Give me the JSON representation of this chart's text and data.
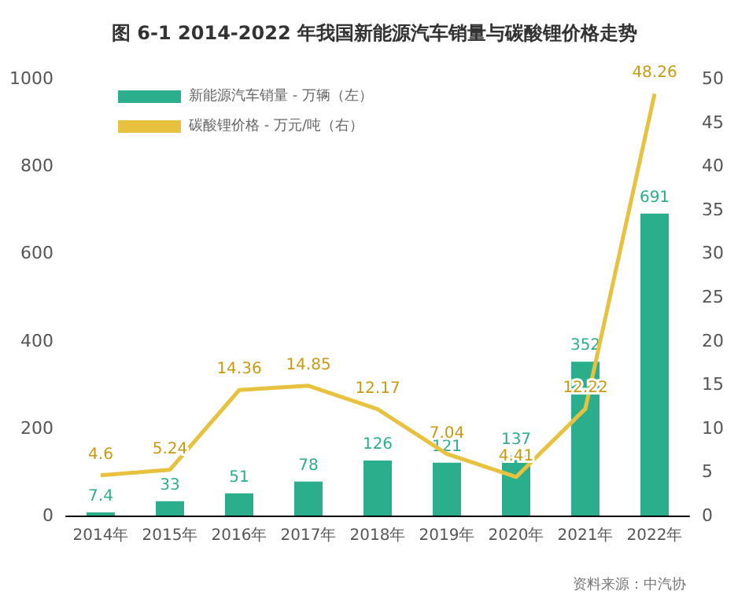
{
  "chart_data": {
    "type": "bar",
    "title": "图 6-1 2014-2022 年我国新能源汽车销量与碳酸锂价格走势",
    "categories": [
      "2014年",
      "2015年",
      "2016年",
      "2017年",
      "2018年",
      "2019年",
      "2020年",
      "2021年",
      "2022年"
    ],
    "series": [
      {
        "name": "新能源汽车销量 - 万辆（左）",
        "color": "#2aae8c",
        "values": [
          7.4,
          33,
          51,
          78,
          126,
          121,
          137,
          352,
          691
        ]
      },
      {
        "name": "碳酸锂价格 - 万元/吨（右）",
        "type": "line",
        "axis": "y2",
        "color": "#e8c23e",
        "values": [
          4.6,
          5.24,
          14.36,
          14.85,
          12.17,
          7.04,
          4.41,
          12.22,
          48.26
        ]
      }
    ],
    "ylim": [
      0,
      1000
    ],
    "yticks": [
      0,
      200,
      400,
      600,
      800,
      1000
    ],
    "y2lim": [
      0,
      50
    ],
    "y2ticks": [
      0,
      5,
      10,
      15,
      20,
      25,
      30,
      35,
      40,
      45,
      50
    ],
    "data_labels": true,
    "legend": "top left",
    "grid": false,
    "marker": "none",
    "line_style": "solid",
    "annotations": [
      "资料来源：中汽协"
    ]
  }
}
